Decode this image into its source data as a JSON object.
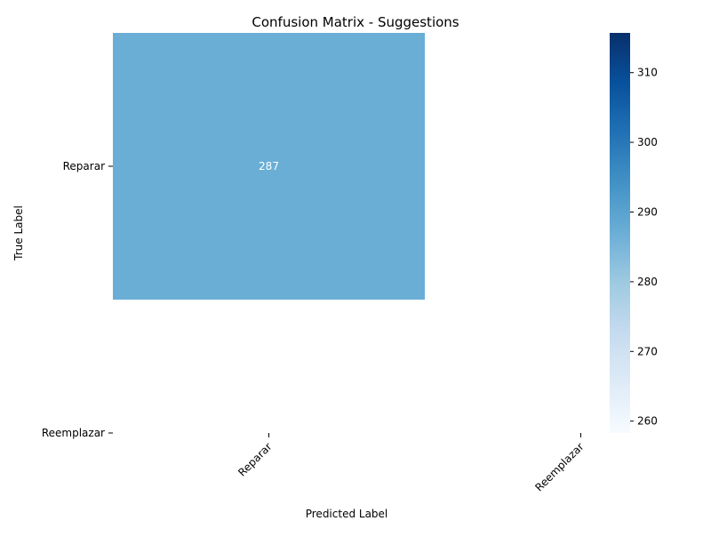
{
  "chart_data": {
    "type": "heatmap",
    "title": "Confusion Matrix - Suggestions",
    "xlabel": "Predicted Label",
    "ylabel": "True Label",
    "x_categories": [
      "Reparar",
      "Reemplazar"
    ],
    "y_categories": [
      "Reparar",
      "Reemplazar"
    ],
    "cells": [
      {
        "row": 0,
        "col": 0,
        "value": 287,
        "label": "287"
      }
    ],
    "colormap": "Blues",
    "colorbar": {
      "min": 258.3,
      "max": 315.7,
      "ticks": [
        "260",
        "270",
        "280",
        "290",
        "300",
        "310"
      ]
    },
    "colors": {
      "cell_287": "#6aaed6",
      "cell_text": "#ffffff",
      "colorbar_low": "#f7fbff",
      "colorbar_high": "#08306b"
    }
  }
}
